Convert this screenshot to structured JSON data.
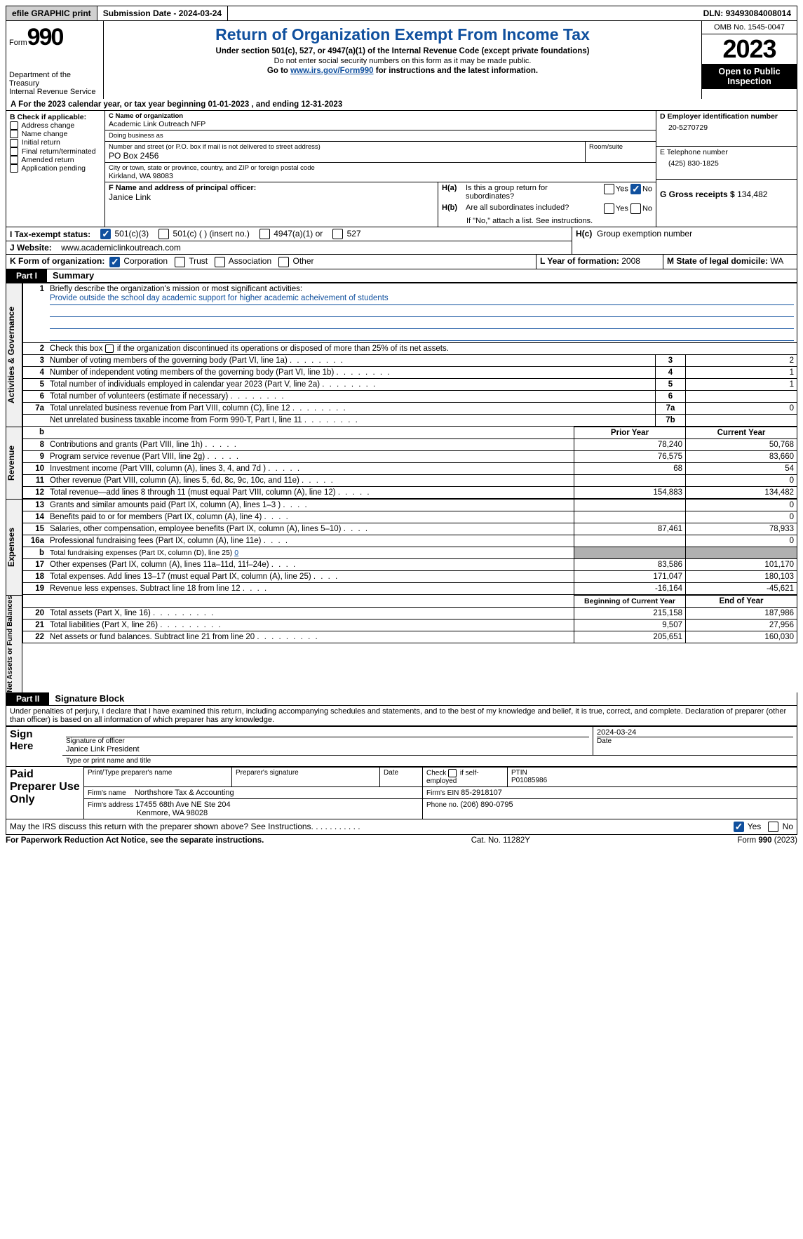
{
  "topbar": {
    "efile": "efile GRAPHIC print",
    "submission_label": "Submission Date - ",
    "submission_date": "2024-03-24",
    "dln_label": "DLN: ",
    "dln": "93493084008014"
  },
  "header": {
    "form_word": "Form",
    "form_num": "990",
    "dept": "Department of the Treasury",
    "irs": "Internal Revenue Service",
    "title": "Return of Organization Exempt From Income Tax",
    "sub1": "Under section 501(c), 527, or 4947(a)(1) of the Internal Revenue Code (except private foundations)",
    "sub2": "Do not enter social security numbers on this form as it may be made public.",
    "sub3_pre": "Go to ",
    "sub3_link": "www.irs.gov/Form990",
    "sub3_post": " for instructions and the latest information.",
    "omb": "OMB No. 1545-0047",
    "year": "2023",
    "open": "Open to Public Inspection"
  },
  "line_a": {
    "pre": "A For the 2023 calendar year, or tax year beginning ",
    "begin": "01-01-2023",
    "mid": "   , and ending ",
    "end": "12-31-2023"
  },
  "col_b": {
    "header": "B Check if applicable:",
    "opts": [
      "Address change",
      "Name change",
      "Initial return",
      "Final return/terminated",
      "Amended return",
      "Application pending"
    ]
  },
  "col_c": {
    "name_label": "C Name of organization",
    "name": "Academic Link Outreach NFP",
    "dba_label": "Doing business as",
    "dba": "",
    "street_label": "Number and street (or P.O. box if mail is not delivered to street address)",
    "street": "PO Box 2456",
    "room_label": "Room/suite",
    "city_label": "City or town, state or province, country, and ZIP or foreign postal code",
    "city": "Kirkland, WA  98083",
    "officer_label": "F  Name and address of principal officer:",
    "officer": "Janice Link"
  },
  "col_d": {
    "ein_label": "D Employer identification number",
    "ein": "20-5270729",
    "phone_label": "E Telephone number",
    "phone": "(425) 830-1825",
    "gross_label": "G Gross receipts $ ",
    "gross": "134,482"
  },
  "section_h": {
    "ha_label": "H(a)",
    "ha_q1": "Is this a group return for",
    "ha_q2": "subordinates?",
    "hb_label": "H(b)",
    "hb_q": "Are all subordinates included?",
    "hb_note": "If \"No,\" attach a list. See instructions.",
    "hc_label": "H(c)",
    "hc_q": "Group exemption number",
    "yes": "Yes",
    "no": "No"
  },
  "section_i": {
    "label": "I   Tax-exempt status:",
    "opts": [
      "501(c)(3)",
      "501(c) (  ) (insert no.)",
      "4947(a)(1) or",
      "527"
    ]
  },
  "section_j": {
    "label": "J   Website:",
    "value": "www.academiclinkoutreach.com"
  },
  "section_k": {
    "label": "K Form of organization:",
    "opts": [
      "Corporation",
      "Trust",
      "Association",
      "Other"
    ]
  },
  "section_l": {
    "label": "L Year of formation: ",
    "value": "2008"
  },
  "section_m": {
    "label": "M State of legal domicile: ",
    "value": "WA"
  },
  "parts": {
    "p1": "Part I",
    "p1_title": "Summary",
    "p2": "Part II",
    "p2_title": "Signature Block"
  },
  "summary": {
    "groups": {
      "ag": "Activities & Governance",
      "rev": "Revenue",
      "exp": "Expenses",
      "nab": "Net Assets or Fund Balances"
    },
    "line1_label": "Briefly describe the organization's mission or most significant activities:",
    "line1_val": "Provide outside the school day academic support for higher academic acheivement of students",
    "line2_label": "Check this box",
    "line2_post": "if the organization discontinued its operations or disposed of more than 25% of its net assets.",
    "cols": {
      "prior": "Prior Year",
      "current": "Current Year",
      "beg": "Beginning of Current Year",
      "end": "End of Year"
    },
    "rows_ag": [
      {
        "n": "3",
        "label": "Number of voting members of the governing body (Part VI, line 1a)",
        "box": "3",
        "val": "2"
      },
      {
        "n": "4",
        "label": "Number of independent voting members of the governing body (Part VI, line 1b)",
        "box": "4",
        "val": "1"
      },
      {
        "n": "5",
        "label": "Total number of individuals employed in calendar year 2023 (Part V, line 2a)",
        "box": "5",
        "val": "1"
      },
      {
        "n": "6",
        "label": "Total number of volunteers (estimate if necessary)",
        "box": "6",
        "val": ""
      },
      {
        "n": "7a",
        "label": "Total unrelated business revenue from Part VIII, column (C), line 12",
        "box": "7a",
        "val": "0"
      },
      {
        "n": "",
        "label": "Net unrelated business taxable income from Form 990-T, Part I, line 11",
        "box": "7b",
        "val": ""
      }
    ],
    "rows_rev": [
      {
        "n": "8",
        "label": "Contributions and grants (Part VIII, line 1h)",
        "prior": "78,240",
        "cur": "50,768"
      },
      {
        "n": "9",
        "label": "Program service revenue (Part VIII, line 2g)",
        "prior": "76,575",
        "cur": "83,660"
      },
      {
        "n": "10",
        "label": "Investment income (Part VIII, column (A), lines 3, 4, and 7d )",
        "prior": "68",
        "cur": "54"
      },
      {
        "n": "11",
        "label": "Other revenue (Part VIII, column (A), lines 5, 6d, 8c, 9c, 10c, and 11e)",
        "prior": "",
        "cur": "0"
      },
      {
        "n": "12",
        "label": "Total revenue—add lines 8 through 11 (must equal Part VIII, column (A), line 12)",
        "prior": "154,883",
        "cur": "134,482"
      }
    ],
    "rows_exp": [
      {
        "n": "13",
        "label": "Grants and similar amounts paid (Part IX, column (A), lines 1–3 )",
        "prior": "",
        "cur": "0"
      },
      {
        "n": "14",
        "label": "Benefits paid to or for members (Part IX, column (A), line 4)",
        "prior": "",
        "cur": "0"
      },
      {
        "n": "15",
        "label": "Salaries, other compensation, employee benefits (Part IX, column (A), lines 5–10)",
        "prior": "87,461",
        "cur": "78,933"
      },
      {
        "n": "16a",
        "label": "Professional fundraising fees (Part IX, column (A), line 11e)",
        "prior": "",
        "cur": "0"
      },
      {
        "n": "b",
        "label": "Total fundraising expenses (Part IX, column (D), line 25) ",
        "val_inline": "0",
        "shade_prior": true,
        "shade_cur": true
      },
      {
        "n": "17",
        "label": "Other expenses (Part IX, column (A), lines 11a–11d, 11f–24e)",
        "prior": "83,586",
        "cur": "101,170"
      },
      {
        "n": "18",
        "label": "Total expenses. Add lines 13–17 (must equal Part IX, column (A), line 25)",
        "prior": "171,047",
        "cur": "180,103"
      },
      {
        "n": "19",
        "label": "Revenue less expenses. Subtract line 18 from line 12",
        "prior": "-16,164",
        "cur": "-45,621"
      }
    ],
    "rows_nab": [
      {
        "n": "20",
        "label": "Total assets (Part X, line 16)",
        "prior": "215,158",
        "cur": "187,986"
      },
      {
        "n": "21",
        "label": "Total liabilities (Part X, line 26)",
        "prior": "9,507",
        "cur": "27,956"
      },
      {
        "n": "22",
        "label": "Net assets or fund balances. Subtract line 21 from line 20",
        "prior": "205,651",
        "cur": "160,030"
      }
    ],
    "rev_b_header": "b"
  },
  "sig": {
    "penalty": "Under penalties of perjury, I declare that I have examined this return, including accompanying schedules and statements, and to the best of my knowledge and belief, it is true, correct, and complete. Declaration of preparer (other than officer) is based on all information of which preparer has any knowledge.",
    "sign_here": "Sign Here",
    "sig_officer_label": "Signature of officer",
    "sig_name": "Janice Link President",
    "sig_type_label": "Type or print name and title",
    "date_label": "Date",
    "date_val": "2024-03-24",
    "paid": "Paid Preparer Use Only",
    "prep_name_label": "Print/Type preparer's name",
    "prep_sig_label": "Preparer's signature",
    "prep_date_label": "Date",
    "check_self": "Check         if self-employed",
    "ptin_label": "PTIN",
    "ptin": "P01085986",
    "firm_name_label": "Firm's name",
    "firm_name": "Northshore Tax & Accounting",
    "firm_ein_label": "Firm's EIN ",
    "firm_ein": "85-2918107",
    "firm_addr_label": "Firm's address ",
    "firm_addr1": "17455 68th Ave NE Ste 204",
    "firm_addr2": "Kenmore, WA  98028",
    "firm_phone_label": "Phone no. ",
    "firm_phone": "(206) 890-0795",
    "discuss": "May the IRS discuss this return with the preparer shown above? See Instructions.",
    "yes": "Yes",
    "no": "No"
  },
  "footer": {
    "left": "For Paperwork Reduction Act Notice, see the separate instructions.",
    "mid": "Cat. No. 11282Y",
    "right_pre": "Form ",
    "right_form": "990",
    "right_post": " (2023)"
  }
}
